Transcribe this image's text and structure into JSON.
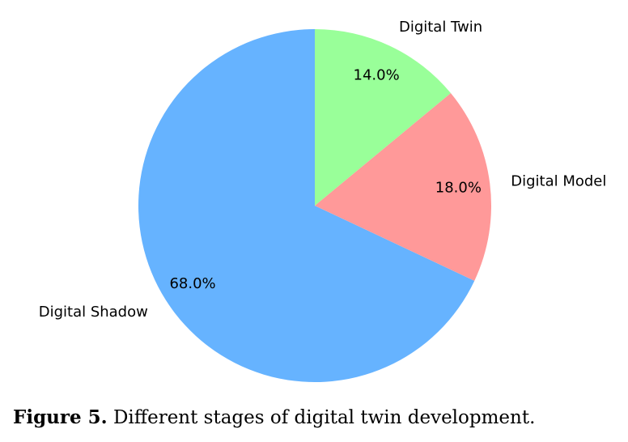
{
  "chart_data": {
    "type": "pie",
    "slices": [
      {
        "label": "Digital Shadow",
        "value": 68.0,
        "pct_label": "68.0%",
        "color": "#66b3ff"
      },
      {
        "label": "Digital Model",
        "value": 18.0,
        "pct_label": "18.0%",
        "color": "#ff9999"
      },
      {
        "label": "Digital Twin",
        "value": 14.0,
        "pct_label": "14.0%",
        "color": "#99ff99"
      }
    ],
    "start_angle_deg": 90,
    "direction": "counterclockwise"
  },
  "caption": {
    "label": "Figure 5.",
    "text": "Different stages of digital twin development."
  }
}
